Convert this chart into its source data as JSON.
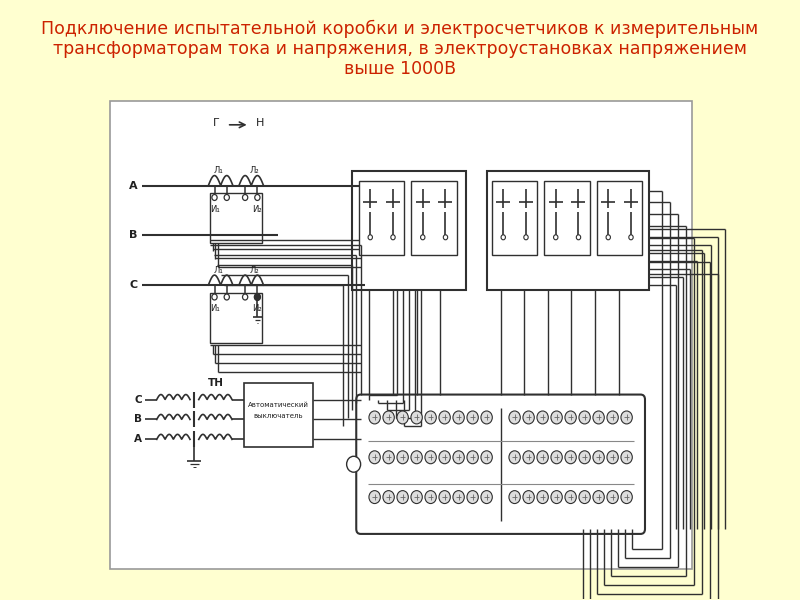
{
  "bg_color": "#FFFFD0",
  "diagram_bg": "#FFFFFF",
  "title_lines": [
    "Подключение испытательной коробки и электросчетчиков к измерительным",
    "трансформаторам тока и напряжения, в электроустановках напряжением",
    "выше 1000В"
  ],
  "title_color": "#CC2200",
  "title_fontsize": 12.5,
  "line_color": "#303030",
  "text_color": "#202020"
}
